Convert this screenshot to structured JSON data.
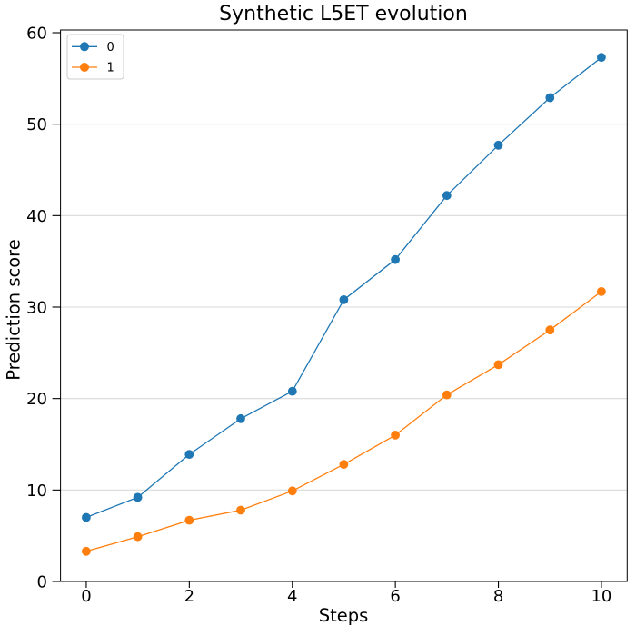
{
  "chart_data": {
    "type": "line",
    "title": "Synthetic L5ET evolution",
    "xlabel": "Steps",
    "ylabel": "Prediction score",
    "x": [
      0,
      1,
      2,
      3,
      4,
      5,
      6,
      7,
      8,
      9,
      10
    ],
    "series": [
      {
        "name": "0",
        "color": "#1f77b4",
        "values": [
          7.0,
          9.2,
          13.9,
          17.8,
          20.8,
          30.8,
          35.2,
          42.2,
          47.7,
          52.9,
          57.3
        ]
      },
      {
        "name": "1",
        "color": "#ff7f0e",
        "values": [
          3.3,
          4.9,
          6.7,
          7.8,
          9.9,
          12.8,
          16.0,
          20.4,
          23.7,
          27.5,
          31.7
        ]
      }
    ],
    "xlim": [
      -0.5,
      10.5
    ],
    "ylim": [
      0,
      60
    ],
    "xticks": [
      0,
      2,
      4,
      6,
      8,
      10
    ],
    "xtick_labels": [
      "0",
      "2",
      "4",
      "6",
      "8",
      "10"
    ],
    "yticks": [
      0,
      10,
      20,
      30,
      40,
      50,
      60
    ],
    "ytick_labels": [
      "0",
      "10",
      "20",
      "30",
      "40",
      "50",
      "60"
    ],
    "grid": "y",
    "marker": "circle",
    "legend": {
      "position": "upper-left",
      "entries": [
        "0",
        "1"
      ]
    },
    "colors": {
      "grid": "#d9d9d9",
      "spine": "#000000",
      "background": "#ffffff",
      "legend_border": "#cccccc",
      "text": "#000000"
    }
  }
}
